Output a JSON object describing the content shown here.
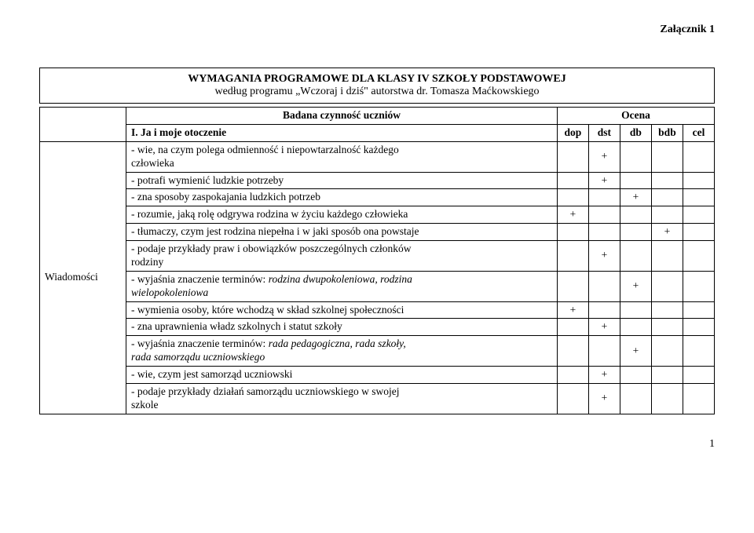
{
  "attachment_label": "Załącznik 1",
  "title_line1": "WYMAGANIA PROGRAMOWE DLA KLASY IV SZKOŁY PODSTAWOWEJ",
  "title_line2": "według programu „Wczoraj i dziś\" autorstwa dr. Tomasza Maćkowskiego",
  "header": {
    "activity": "Badana czynność uczniów",
    "grade": "Ocena",
    "section": "I. Ja i moje otoczenie",
    "cols": {
      "c1": "dop",
      "c2": "dst",
      "c3": "db",
      "c4": "bdb",
      "c5": "cel"
    }
  },
  "row_label": "Wiadomości",
  "rows": {
    "r0": {
      "text_a": "- wie, na czym polega odmienność i niepowtarzalność każdego",
      "text_b": "człowieka",
      "c1": "",
      "c2": "+",
      "c3": "",
      "c4": "",
      "c5": ""
    },
    "r1": {
      "text": "- potrafi wymienić ludzkie potrzeby",
      "c1": "",
      "c2": "+",
      "c3": "",
      "c4": "",
      "c5": ""
    },
    "r2": {
      "text": "- zna sposoby zaspokajania ludzkich potrzeb",
      "c1": "",
      "c2": "",
      "c3": "+",
      "c4": "",
      "c5": ""
    },
    "r3": {
      "text": "- rozumie, jaką rolę odgrywa rodzina w życiu każdego człowieka",
      "c1": "+",
      "c2": "",
      "c3": "",
      "c4": "",
      "c5": ""
    },
    "r4": {
      "text": "- tłumaczy, czym jest rodzina niepełna i w jaki sposób ona powstaje",
      "c1": "",
      "c2": "",
      "c3": "",
      "c4": "+",
      "c5": ""
    },
    "r5": {
      "text_a": "- podaje przykłady praw i obowiązków poszczególnych członków",
      "text_b": "rodziny",
      "c1": "",
      "c2": "+",
      "c3": "",
      "c4": "",
      "c5": ""
    },
    "r6": {
      "text_a": "- wyjaśnia znaczenie terminów: ",
      "text_i": "rodzina dwupokoleniowa, rodzina",
      "text_b_i": "wielopokoleniowa",
      "c1": "",
      "c2": "",
      "c3": "+",
      "c4": "",
      "c5": ""
    },
    "r7": {
      "text": "- wymienia osoby, które wchodzą w skład szkolnej społeczności",
      "c1": "+",
      "c2": "",
      "c3": "",
      "c4": "",
      "c5": ""
    },
    "r8": {
      "text": "- zna uprawnienia władz szkolnych i statut szkoły",
      "c1": "",
      "c2": "+",
      "c3": "",
      "c4": "",
      "c5": ""
    },
    "r9": {
      "text_a": "- wyjaśnia znaczenie terminów: ",
      "text_i": "rada pedagogiczna, rada szkoły,",
      "text_b_i": "rada samorządu uczniowskiego",
      "c1": "",
      "c2": "",
      "c3": "+",
      "c4": "",
      "c5": ""
    },
    "r10": {
      "text": "- wie, czym jest samorząd uczniowski",
      "c1": "",
      "c2": "+",
      "c3": "",
      "c4": "",
      "c5": ""
    },
    "r11": {
      "text_a": "- podaje przykłady działań samorządu uczniowskiego w swojej",
      "text_b": "szkole",
      "c1": "",
      "c2": "+",
      "c3": "",
      "c4": "",
      "c5": ""
    }
  },
  "page_number": "1"
}
